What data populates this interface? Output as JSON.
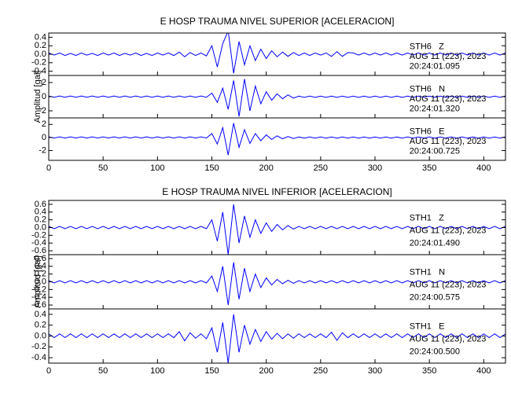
{
  "chart_data": [
    {
      "type": "line",
      "title": "E HOSP TRAUMA NIVEL SUPERIOR [ACELERACION]",
      "ylabel": "Amplitud [gal]",
      "xlim": [
        0,
        420
      ],
      "xticks": [
        0,
        50,
        100,
        150,
        200,
        250,
        300,
        350,
        400
      ],
      "x": [
        0,
        5,
        10,
        15,
        20,
        25,
        30,
        35,
        40,
        45,
        50,
        55,
        60,
        65,
        70,
        75,
        80,
        85,
        90,
        95,
        100,
        105,
        110,
        115,
        120,
        125,
        130,
        135,
        140,
        145,
        150,
        155,
        160,
        165,
        170,
        175,
        180,
        185,
        190,
        195,
        200,
        205,
        210,
        215,
        220,
        225,
        230,
        235,
        240,
        245,
        250,
        255,
        260,
        265,
        270,
        275,
        280,
        285,
        290,
        295,
        300,
        305,
        310,
        315,
        320,
        325,
        330,
        335,
        340,
        345,
        350,
        355,
        360,
        365,
        370,
        375,
        380,
        385,
        390,
        395,
        400,
        405,
        410,
        415,
        420
      ],
      "series": [
        {
          "station": "STH6   Z",
          "date": "AUG 11 (223), 2023",
          "time": "20:24:01.095",
          "color": "#0000ff",
          "ylim": [
            -0.5,
            0.5
          ],
          "yticks": [
            {
              "value": -0.4,
              "label": "-0.4"
            },
            {
              "value": -0.2,
              "label": "-0.2"
            },
            {
              "value": 0,
              "label": "0.0"
            },
            0.2,
            0.4
          ],
          "values": [
            0.03,
            -0.02,
            0.03,
            -0.03,
            0.02,
            -0.03,
            0.03,
            -0.02,
            0.02,
            -0.03,
            0.03,
            -0.02,
            0.03,
            -0.03,
            0.02,
            -0.02,
            0.03,
            -0.03,
            0.02,
            -0.03,
            0.03,
            -0.02,
            0.03,
            -0.03,
            0.05,
            -0.06,
            0.04,
            -0.03,
            0.03,
            -0.04,
            0.2,
            -0.3,
            0.25,
            0.55,
            -0.45,
            0.3,
            -0.25,
            0.2,
            -0.15,
            0.12,
            -0.1,
            0.08,
            -0.06,
            0.05,
            -0.05,
            0.04,
            -0.03,
            0.03,
            -0.03,
            0.03,
            -0.02,
            0.03,
            -0.05,
            0.06,
            -0.05,
            0.04,
            0.03,
            -0.02,
            0.03,
            -0.02,
            0.03,
            -0.02,
            0.03,
            -0.02,
            0.03,
            -0.02,
            0.03,
            -0.02,
            0.03,
            -0.02,
            0.03,
            -0.02,
            0.03,
            -0.02,
            0.03,
            -0.02,
            0.03,
            -0.02,
            0.03,
            -0.02,
            0.03,
            -0.02,
            0.03,
            -0.02,
            0.03
          ]
        },
        {
          "station": "STH6   N",
          "date": "AUG 11 (223), 2023",
          "time": "20:24:01.320",
          "color": "#0000ff",
          "ylim": [
            -3,
            3
          ],
          "yticks": [
            -2,
            0,
            2
          ],
          "values": [
            0.1,
            -0.08,
            0.1,
            -0.08,
            0.1,
            -0.08,
            0.1,
            -0.08,
            0.1,
            -0.08,
            0.1,
            -0.08,
            0.1,
            -0.08,
            0.1,
            -0.08,
            0.1,
            -0.08,
            0.1,
            -0.08,
            0.1,
            -0.08,
            0.1,
            -0.08,
            0.1,
            -0.08,
            0.1,
            -0.08,
            0.1,
            -0.08,
            0.5,
            -0.8,
            1.2,
            -1.8,
            2.3,
            -2.8,
            2.5,
            -2,
            1.5,
            -1,
            0.7,
            -0.5,
            0.4,
            -0.3,
            0.25,
            -0.2,
            0.08,
            -0.1,
            0.08,
            -0.1,
            0.08,
            -0.1,
            0.08,
            -0.1,
            0.08,
            -0.1,
            0.08,
            -0.1,
            0.08,
            -0.1,
            0.08,
            -0.1,
            0.08,
            -0.1,
            0.08,
            -0.1,
            0.08,
            -0.1,
            0.08,
            -0.1,
            0.08,
            -0.1,
            0.08,
            -0.1,
            0.08,
            -0.1,
            0.08,
            -0.1,
            0.08,
            -0.1,
            0.08,
            -0.1,
            0.08,
            -0.1,
            0.1
          ]
        },
        {
          "station": "STH6   E",
          "date": "AUG 11 (223), 2023",
          "time": "20:24:00.725",
          "color": "#0000ff",
          "ylim": [
            -3.5,
            3
          ],
          "yticks": [
            -2,
            0,
            2
          ],
          "values": [
            0.1,
            -0.08,
            0.1,
            -0.08,
            0.1,
            -0.08,
            0.1,
            -0.08,
            0.1,
            -0.08,
            0.1,
            -0.08,
            0.1,
            -0.08,
            0.1,
            -0.08,
            0.1,
            -0.08,
            0.1,
            -0.08,
            0.1,
            -0.08,
            0.1,
            -0.08,
            0.1,
            -0.08,
            0.1,
            -0.08,
            0.1,
            -0.08,
            0.6,
            -1,
            1.5,
            -2.7,
            2.2,
            -1.5,
            1.2,
            -0.9,
            0.6,
            -0.5,
            0.4,
            -0.3,
            0.25,
            -0.2,
            0.15,
            -0.15,
            0.08,
            -0.1,
            0.08,
            -0.1,
            0.08,
            -0.1,
            0.08,
            -0.1,
            0.08,
            -0.1,
            0.08,
            -0.1,
            0.08,
            -0.1,
            0.08,
            -0.1,
            0.08,
            -0.1,
            0.08,
            -0.1,
            0.08,
            -0.1,
            0.08,
            -0.1,
            0.08,
            -0.1,
            0.08,
            -0.1,
            0.08,
            -0.1,
            0.08,
            -0.1,
            0.08,
            -0.1,
            0.08,
            -0.1,
            0.08,
            -0.1,
            0.1
          ]
        }
      ]
    },
    {
      "type": "line",
      "title": "E HOSP TRAUMA NIVEL INFERIOR [ACELERACION]",
      "ylabel": "Amplitud [gal]",
      "xlim": [
        0,
        420
      ],
      "xticks": [
        0,
        50,
        100,
        150,
        200,
        250,
        300,
        350,
        400
      ],
      "x": [
        0,
        5,
        10,
        15,
        20,
        25,
        30,
        35,
        40,
        45,
        50,
        55,
        60,
        65,
        70,
        75,
        80,
        85,
        90,
        95,
        100,
        105,
        110,
        115,
        120,
        125,
        130,
        135,
        140,
        145,
        150,
        155,
        160,
        165,
        170,
        175,
        180,
        185,
        190,
        195,
        200,
        205,
        210,
        215,
        220,
        225,
        230,
        235,
        240,
        245,
        250,
        255,
        260,
        265,
        270,
        275,
        280,
        285,
        290,
        295,
        300,
        305,
        310,
        315,
        320,
        325,
        330,
        335,
        340,
        345,
        350,
        355,
        360,
        365,
        370,
        375,
        380,
        385,
        390,
        395,
        400,
        405,
        410,
        415,
        420
      ],
      "series": [
        {
          "station": "STH1   Z",
          "date": "AUG 11 (223), 2023",
          "time": "20:24:01.490",
          "color": "#0000ff",
          "ylim": [
            -0.7,
            0.7
          ],
          "yticks": [
            {
              "value": -0.6,
              "label": "-0.6"
            },
            {
              "value": -0.4,
              "label": "-0.4"
            },
            {
              "value": -0.2,
              "label": "-0.2"
            },
            {
              "value": 0,
              "label": "0.0"
            },
            0.2,
            0.4,
            0.6
          ],
          "values": [
            0.03,
            -0.03,
            0.03,
            -0.03,
            0.03,
            -0.03,
            0.03,
            -0.03,
            0.03,
            -0.03,
            0.03,
            -0.03,
            0.03,
            -0.03,
            0.03,
            -0.03,
            0.03,
            -0.03,
            0.03,
            -0.03,
            0.03,
            -0.03,
            0.03,
            -0.03,
            0.03,
            -0.03,
            0.03,
            -0.03,
            0.03,
            -0.03,
            0.2,
            -0.35,
            0.4,
            -0.7,
            0.6,
            -0.4,
            0.3,
            -0.25,
            0.2,
            -0.15,
            0.12,
            -0.1,
            0.08,
            -0.06,
            0.05,
            -0.04,
            0.03,
            -0.03,
            0.03,
            -0.03,
            0.03,
            -0.03,
            0.03,
            -0.03,
            0.03,
            -0.03,
            0.03,
            -0.03,
            0.03,
            -0.03,
            0.03,
            -0.03,
            0.03,
            -0.03,
            0.03,
            -0.03,
            0.03,
            -0.03,
            0.03,
            -0.03,
            0.03,
            -0.03,
            0.03,
            -0.03,
            0.03,
            -0.03,
            0.03,
            -0.03,
            0.03,
            -0.03,
            0.03,
            -0.03,
            0.03,
            -0.03,
            0.03
          ]
        },
        {
          "station": "STH1   N",
          "date": "AUG 11 (223), 2023",
          "time": "20:24:00.575",
          "color": "#0000ff",
          "ylim": [
            -0.7,
            0.7
          ],
          "yticks": [
            {
              "value": -0.6,
              "label": "-0.6"
            },
            {
              "value": -0.4,
              "label": "-0.4"
            },
            {
              "value": -0.2,
              "label": "-0.2"
            },
            {
              "value": 0,
              "label": "0.0"
            },
            0.2,
            0.4,
            0.6
          ],
          "values": [
            0.03,
            -0.03,
            0.03,
            -0.03,
            0.03,
            -0.03,
            0.03,
            -0.03,
            0.03,
            -0.03,
            0.03,
            -0.03,
            0.03,
            -0.03,
            0.03,
            -0.03,
            0.03,
            -0.03,
            0.03,
            -0.03,
            0.03,
            -0.03,
            0.03,
            -0.03,
            0.03,
            -0.03,
            0.03,
            -0.03,
            0.03,
            -0.03,
            0.15,
            -0.25,
            0.4,
            -0.6,
            0.5,
            -0.45,
            0.35,
            -0.25,
            0.2,
            -0.15,
            0.1,
            -0.08,
            0.06,
            -0.05,
            0.04,
            -0.04,
            0.03,
            -0.03,
            0.03,
            -0.03,
            0.03,
            -0.03,
            0.03,
            -0.03,
            0.03,
            -0.03,
            0.03,
            -0.03,
            0.03,
            -0.03,
            0.03,
            -0.03,
            0.03,
            -0.03,
            0.03,
            -0.03,
            0.03,
            -0.03,
            0.03,
            -0.03,
            0.03,
            -0.03,
            0.03,
            -0.03,
            0.03,
            -0.03,
            0.03,
            -0.03,
            0.03,
            -0.03,
            0.03,
            -0.03,
            0.03,
            -0.03,
            0.03
          ]
        },
        {
          "station": "STH1   E",
          "date": "AUG 11 (223), 2023",
          "time": "20:24:00.500",
          "color": "#0000ff",
          "ylim": [
            -0.5,
            0.5
          ],
          "yticks": [
            {
              "value": -0.4,
              "label": "-0.4"
            },
            {
              "value": -0.2,
              "label": "-0.2"
            },
            {
              "value": 0,
              "label": "0.0"
            },
            0.2,
            0.4
          ],
          "values": [
            0.04,
            -0.03,
            0.04,
            -0.03,
            0.04,
            -0.03,
            0.04,
            -0.03,
            0.04,
            -0.03,
            0.04,
            -0.03,
            0.04,
            -0.03,
            0.04,
            -0.03,
            0.04,
            -0.03,
            0.04,
            -0.03,
            0.04,
            -0.03,
            0.04,
            -0.03,
            0.08,
            -0.09,
            0.06,
            -0.04,
            0.04,
            -0.05,
            0.15,
            -0.3,
            0.25,
            -0.5,
            0.4,
            -0.3,
            0.2,
            -0.15,
            0.12,
            -0.1,
            0.08,
            -0.06,
            0.05,
            -0.05,
            0.04,
            -0.04,
            0.04,
            -0.03,
            0.04,
            -0.03,
            0.04,
            -0.03,
            0.07,
            -0.08,
            0.06,
            -0.03,
            0.04,
            -0.03,
            0.04,
            -0.03,
            0.04,
            -0.03,
            0.04,
            -0.03,
            0.04,
            -0.03,
            0.04,
            -0.03,
            0.04,
            -0.03,
            0.04,
            -0.03,
            0.04,
            -0.03,
            0.04,
            -0.03,
            0.04,
            -0.03,
            0.04,
            -0.03,
            0.04,
            -0.03,
            0.04,
            -0.03,
            0.04
          ]
        }
      ]
    }
  ]
}
